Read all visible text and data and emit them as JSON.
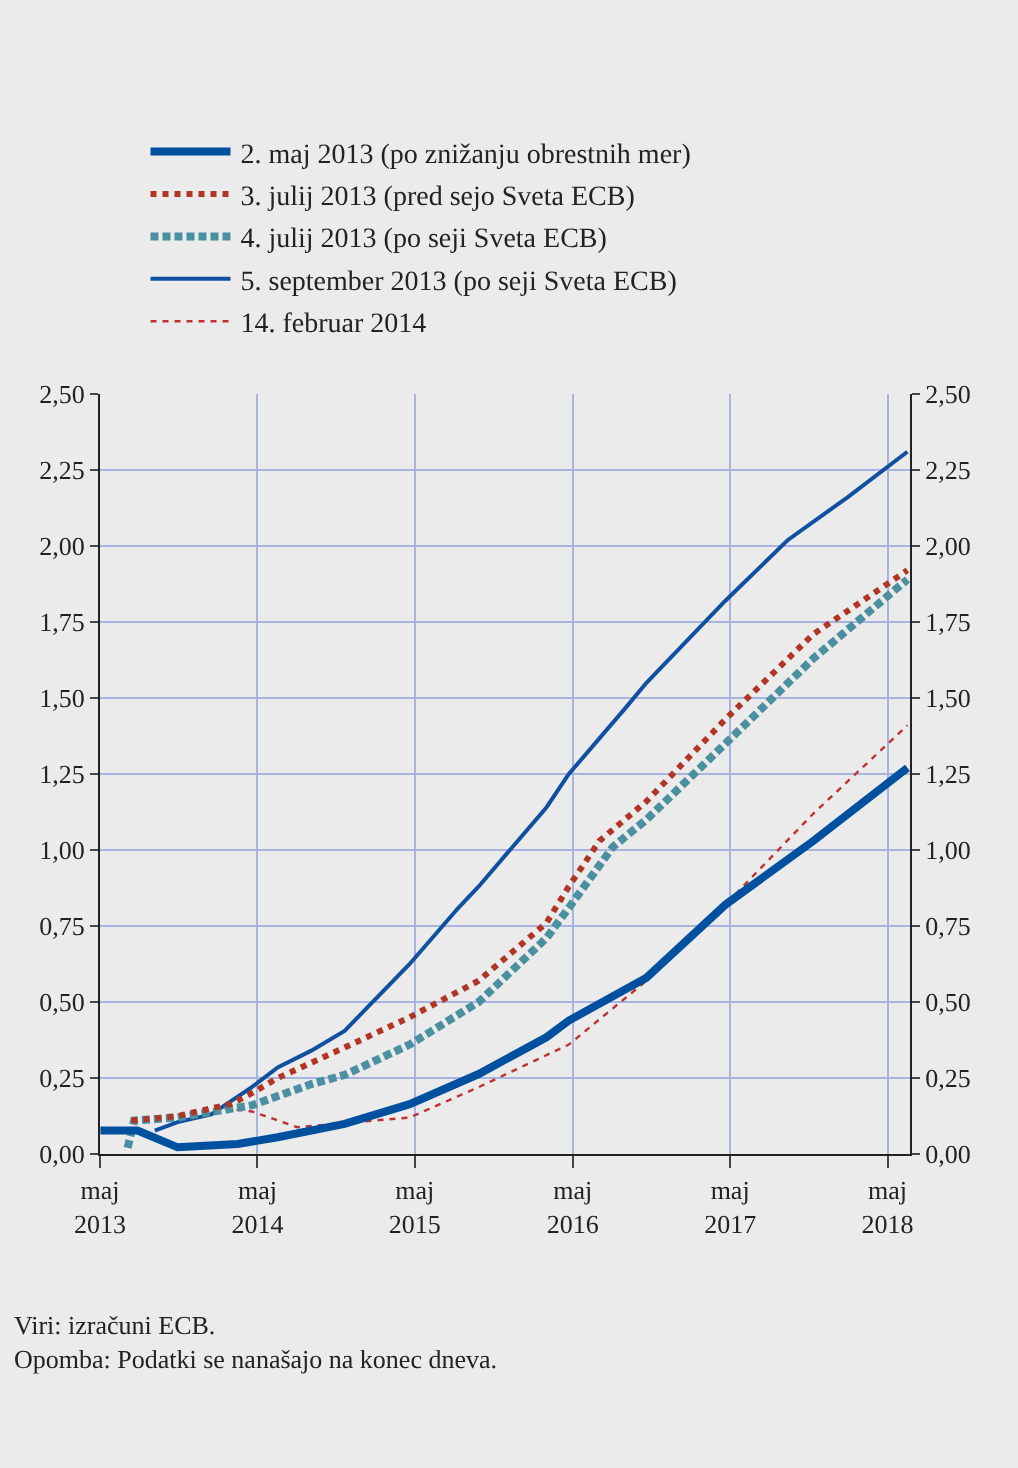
{
  "chart_data": {
    "type": "line",
    "series": [
      {
        "name": "2. maj 2013 (po znižanju obrestnih mer)",
        "color": "#0050a0",
        "line_style": "solid",
        "x": [
          "2013-05-02",
          "2013-07-27",
          "2013-10-28",
          "2014-03-16",
          "2014-06-17",
          "2014-11-19",
          "2015-04-19",
          "2015-09-26",
          "2016-03-01",
          "2016-04-22",
          "2016-10-19",
          "2017-04-20",
          "2017-11-10",
          "2018-06-16"
        ],
        "values": [
          0.077,
          0.077,
          0.022,
          0.033,
          0.055,
          0.099,
          0.164,
          0.263,
          0.384,
          0.439,
          0.58,
          0.82,
          1.03,
          1.27
        ]
      },
      {
        "name": "3. julij 2013 (pred sejo Sveta ECB)",
        "color": "#b03525",
        "line_style": "dotted",
        "x": [
          "2013-07-13",
          "2013-10-28",
          "2014-03-01",
          "2014-04-18",
          "2014-06-17",
          "2014-11-19",
          "2015-04-19",
          "2015-09-26",
          "2016-03-01",
          "2016-04-22",
          "2016-07-02",
          "2016-10-19",
          "2017-04-20",
          "2017-11-10",
          "2018-06-16"
        ],
        "values": [
          0.11,
          0.125,
          0.165,
          0.2,
          0.25,
          0.35,
          0.45,
          0.57,
          0.76,
          0.88,
          1.03,
          1.16,
          1.43,
          1.71,
          1.92
        ]
      },
      {
        "name": "4. julij 2013 (po seji Sveta ECB)",
        "color": "#4a90a0",
        "line_style": "dashed",
        "x": [
          "2013-07-04",
          "2013-07-19",
          "2013-10-28",
          "2014-04-18",
          "2014-09-03",
          "2014-11-19",
          "2015-04-19",
          "2015-09-26",
          "2016-03-01",
          "2016-04-22",
          "2016-08-02",
          "2016-10-19",
          "2017-04-20",
          "2017-11-10",
          "2018-06-16"
        ],
        "values": [
          0.02,
          0.11,
          0.12,
          0.16,
          0.23,
          0.26,
          0.36,
          0.5,
          0.71,
          0.81,
          1.01,
          1.1,
          1.35,
          1.63,
          1.89
        ]
      },
      {
        "name": "5. september 2013 (po seji Sveta ECB)",
        "color": "#1050a0",
        "line_style": "solid",
        "x": [
          "2013-09-05",
          "2013-10-28",
          "2014-01-14",
          "2014-04-18",
          "2014-06-17",
          "2014-09-03",
          "2014-11-19",
          "2015-04-19",
          "2015-08-10",
          "2015-09-26",
          "2016-03-01",
          "2016-04-22",
          "2016-09-02",
          "2016-10-19",
          "2017-04-20",
          "2017-09-12",
          "2018-01-28",
          "2018-06-16"
        ],
        "values": [
          0.077,
          0.105,
          0.13,
          0.22,
          0.285,
          0.34,
          0.405,
          0.625,
          0.81,
          0.88,
          1.14,
          1.25,
          1.47,
          1.55,
          1.82,
          2.02,
          2.16,
          2.31
        ]
      },
      {
        "name": "14. februar 2014",
        "color": "#c03030",
        "line_style": "dotted",
        "x": [
          "2014-02-14",
          "2014-04-18",
          "2014-08-02",
          "2015-04-19",
          "2015-09-26",
          "2016-04-22",
          "2016-10-19",
          "2017-04-20",
          "2017-11-10",
          "2018-06-16"
        ],
        "values": [
          0.15,
          0.14,
          0.088,
          0.12,
          0.22,
          0.36,
          0.57,
          0.82,
          1.12,
          1.41
        ]
      }
    ],
    "xlim": [
      "2013-05-01",
      "2018-06-22"
    ],
    "xticks": [
      {
        "value": "2013-05-01",
        "label": "maj\n2013"
      },
      {
        "value": "2014-05-01",
        "label": "maj\n2014"
      },
      {
        "value": "2015-05-01",
        "label": "maj\n2015"
      },
      {
        "value": "2016-05-01",
        "label": "maj\n2016"
      },
      {
        "value": "2017-05-01",
        "label": "maj\n2017"
      },
      {
        "value": "2018-05-01",
        "label": "maj\n2018"
      }
    ],
    "ylim": [
      0,
      2.5
    ],
    "yticks": [
      {
        "value": 0,
        "label": "0,00"
      },
      {
        "value": 0.25,
        "label": "0,25"
      },
      {
        "value": 0.5,
        "label": "0,50"
      },
      {
        "value": 0.75,
        "label": "0,75"
      },
      {
        "value": 1,
        "label": "1,00"
      },
      {
        "value": 1.25,
        "label": "1,25"
      },
      {
        "value": 1.5,
        "label": "1,50"
      },
      {
        "value": 1.75,
        "label": "1,75"
      },
      {
        "value": 2,
        "label": "2,00"
      },
      {
        "value": 2.25,
        "label": "2,25"
      },
      {
        "value": 2.5,
        "label": "2,50"
      }
    ],
    "y2lim": [
      0,
      2.5
    ],
    "y2ticks": [
      {
        "value": 0,
        "label": "0,00"
      },
      {
        "value": 0.25,
        "label": "0,25"
      },
      {
        "value": 0.5,
        "label": "0,50"
      },
      {
        "value": 0.75,
        "label": "0,75"
      },
      {
        "value": 1,
        "label": "1,00"
      },
      {
        "value": 1.25,
        "label": "1,25"
      },
      {
        "value": 1.5,
        "label": "1,50"
      },
      {
        "value": 1.75,
        "label": "1,75"
      },
      {
        "value": 2,
        "label": "2,00"
      },
      {
        "value": 2.25,
        "label": "2,25"
      },
      {
        "value": 2.5,
        "label": "2,50"
      }
    ],
    "grid": true,
    "legend": "top",
    "marker": "none",
    "annotations": [
      "Viri: izračuni ECB.",
      "Opomba: Podatki se nanašajo na konec dneva."
    ]
  }
}
